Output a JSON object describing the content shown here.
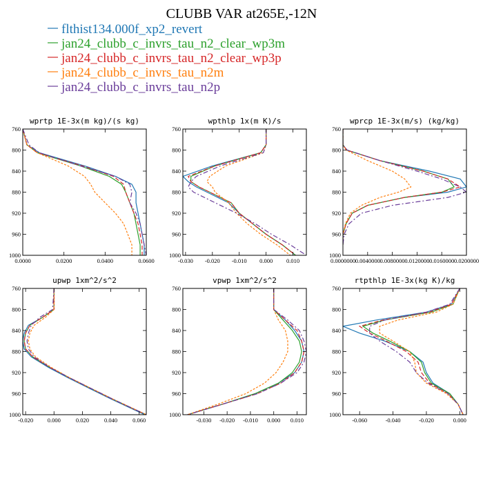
{
  "title": "CLUBB VAR at265E,-12N",
  "legend": [
    {
      "label": "flthist134.000f_xp2_revert",
      "color": "#1f77b4"
    },
    {
      "label": "jan24_clubb_c_invrs_tau_n2_clear_wp3m",
      "color": "#2ca02c"
    },
    {
      "label": "jan24_clubb_c_invrs_tau_n2_clear_wp3p",
      "color": "#d62728"
    },
    {
      "label": "jan24_clubb_c_invrs_tau_n2m",
      "color": "#ff7f0e"
    },
    {
      "label": "jan24_clubb_c_invrs_tau_n2p",
      "color": "#6a3d9a"
    }
  ],
  "chart_data": [
    {
      "type": "line",
      "title": "wprtp  1E-3x(m kg)/(s kg)",
      "xlim": [
        0.0,
        0.06
      ],
      "ylim": [
        760,
        1000
      ],
      "y_inverted": true,
      "xticks": [
        "0.0000",
        "0.0200",
        "0.0400",
        "0.0600"
      ],
      "xtick_values": [
        0.0,
        0.02,
        0.04,
        0.06
      ],
      "yticks": [
        760,
        800,
        840,
        880,
        920,
        960,
        1000
      ],
      "y": [
        760,
        790,
        805,
        830,
        850,
        865,
        880,
        900,
        920,
        940,
        960,
        980,
        1000
      ],
      "series": [
        {
          "values": [
            0.0,
            0.002,
            0.008,
            0.03,
            0.045,
            0.053,
            0.055,
            0.055,
            0.056,
            0.057,
            0.058,
            0.059,
            0.059
          ]
        },
        {
          "values": [
            0.0,
            0.002,
            0.007,
            0.028,
            0.042,
            0.048,
            0.05,
            0.052,
            0.054,
            0.055,
            0.056,
            0.057,
            0.057
          ]
        },
        {
          "values": [
            0.0,
            0.002,
            0.007,
            0.029,
            0.044,
            0.049,
            0.05,
            0.052,
            0.054,
            0.056,
            0.057,
            0.058,
            0.058
          ]
        },
        {
          "values": [
            0.0,
            0.002,
            0.007,
            0.022,
            0.03,
            0.033,
            0.035,
            0.04,
            0.045,
            0.049,
            0.051,
            0.053,
            0.053
          ]
        },
        {
          "values": [
            0.0,
            0.003,
            0.008,
            0.028,
            0.045,
            0.052,
            0.053,
            0.052,
            0.055,
            0.057,
            0.058,
            0.059,
            0.06
          ]
        }
      ]
    },
    {
      "type": "line",
      "title": "wpthlp  1x(m K)/s",
      "xlim": [
        -0.031,
        0.015
      ],
      "ylim": [
        760,
        1000
      ],
      "y_inverted": true,
      "xticks": [
        "-0.030",
        "-0.020",
        "-0.010",
        "0.000",
        "0.010"
      ],
      "xtick_values": [
        -0.03,
        -0.02,
        -0.01,
        0.0,
        0.01
      ],
      "yticks": [
        760,
        800,
        840,
        880,
        920,
        960,
        1000
      ],
      "y": [
        760,
        790,
        805,
        830,
        850,
        860,
        870,
        880,
        900,
        920,
        940,
        960,
        980,
        1000
      ],
      "series": [
        {
          "values": [
            0.0,
            0.0,
            -0.002,
            -0.02,
            -0.031,
            -0.029,
            -0.026,
            -0.022,
            -0.014,
            -0.01,
            -0.005,
            0.0,
            0.006,
            0.011
          ]
        },
        {
          "values": [
            0.0,
            0.0,
            -0.002,
            -0.019,
            -0.028,
            -0.028,
            -0.025,
            -0.021,
            -0.013,
            -0.01,
            -0.005,
            0.0,
            0.006,
            0.011
          ]
        },
        {
          "values": [
            0.0,
            0.0,
            -0.002,
            -0.019,
            -0.029,
            -0.028,
            -0.025,
            -0.021,
            -0.013,
            -0.01,
            -0.005,
            0.0,
            0.006,
            0.011
          ]
        },
        {
          "values": [
            0.0,
            0.0,
            -0.001,
            -0.015,
            -0.021,
            -0.022,
            -0.02,
            -0.019,
            -0.014,
            -0.011,
            -0.007,
            -0.002,
            0.004,
            0.009
          ]
        },
        {
          "values": [
            0.0,
            0.0,
            -0.001,
            -0.017,
            -0.026,
            -0.028,
            -0.029,
            -0.027,
            -0.019,
            -0.011,
            -0.004,
            0.002,
            0.009,
            0.015
          ]
        }
      ]
    },
    {
      "type": "line",
      "title": "wprcp  1E-3x(m/s) (kg/kg)",
      "xlim": [
        0.0,
        0.02
      ],
      "ylim": [
        760,
        1000
      ],
      "y_inverted": true,
      "xticks": [
        "0.0000000",
        "0.0040000",
        "0.0080000",
        "0.0120000",
        "0.0160000",
        "0.0200000"
      ],
      "xtick_values": [
        0.0,
        0.004,
        0.008,
        0.012,
        0.016,
        0.02
      ],
      "yticks": [
        760,
        800,
        840,
        880,
        920,
        960,
        1000
      ],
      "y": [
        760,
        790,
        800,
        820,
        840,
        855,
        870,
        880,
        890,
        905,
        920,
        940,
        960,
        980
      ],
      "series": [
        {
          "values": [
            0.0,
            0.0,
            0.0006,
            0.006,
            0.014,
            0.019,
            0.02,
            0.017,
            0.01,
            0.004,
            0.0015,
            0.0005,
            0.0,
            0.0
          ]
        },
        {
          "values": [
            0.0,
            0.0,
            0.0006,
            0.006,
            0.013,
            0.017,
            0.018,
            0.016,
            0.01,
            0.004,
            0.0015,
            0.0005,
            0.0,
            0.0
          ]
        },
        {
          "values": [
            0.0,
            0.0,
            0.0006,
            0.006,
            0.013,
            0.017,
            0.019,
            0.016,
            0.01,
            0.004,
            0.0015,
            0.0005,
            0.0,
            0.0
          ]
        },
        {
          "values": [
            0.0,
            0.0,
            0.0005,
            0.004,
            0.008,
            0.01,
            0.011,
            0.009,
            0.006,
            0.003,
            0.0012,
            0.0004,
            0.0,
            0.0
          ]
        },
        {
          "values": [
            0.0,
            0.0,
            0.0007,
            0.006,
            0.012,
            0.016,
            0.019,
            0.02,
            0.017,
            0.008,
            0.003,
            0.001,
            0.0002,
            0.0
          ]
        }
      ]
    },
    {
      "type": "line",
      "title": "upwp  1xm^2/s^2",
      "xlim": [
        -0.022,
        0.065
      ],
      "ylim": [
        760,
        1000
      ],
      "y_inverted": true,
      "xticks": [
        "-0.020",
        "0.000",
        "0.020",
        "0.040",
        "0.060"
      ],
      "xtick_values": [
        -0.02,
        0.0,
        0.02,
        0.04,
        0.06
      ],
      "yticks": [
        760,
        800,
        840,
        880,
        920,
        960,
        1000
      ],
      "y": [
        760,
        800,
        815,
        830,
        845,
        860,
        875,
        890,
        910,
        930,
        950,
        970,
        990,
        1000
      ],
      "series": [
        {
          "values": [
            0.0,
            0.0,
            -0.008,
            -0.018,
            -0.021,
            -0.022,
            -0.021,
            -0.016,
            -0.004,
            0.01,
            0.025,
            0.04,
            0.056,
            0.064
          ]
        },
        {
          "values": [
            0.0,
            0.0,
            -0.008,
            -0.017,
            -0.02,
            -0.021,
            -0.02,
            -0.015,
            -0.003,
            0.011,
            0.026,
            0.041,
            0.057,
            0.065
          ]
        },
        {
          "values": [
            0.0,
            0.0,
            -0.008,
            -0.017,
            -0.02,
            -0.021,
            -0.02,
            -0.015,
            -0.003,
            0.011,
            0.026,
            0.041,
            0.057,
            0.065
          ]
        },
        {
          "values": [
            0.0,
            0.0,
            -0.006,
            -0.014,
            -0.017,
            -0.018,
            -0.017,
            -0.013,
            -0.002,
            0.011,
            0.026,
            0.041,
            0.057,
            0.065
          ]
        },
        {
          "values": [
            0.0,
            -0.001,
            -0.01,
            -0.016,
            -0.018,
            -0.019,
            -0.018,
            -0.014,
            -0.003,
            0.011,
            0.026,
            0.041,
            0.057,
            0.065
          ]
        }
      ]
    },
    {
      "type": "line",
      "title": "vpwp  1xm^2/s^2",
      "xlim": [
        -0.039,
        0.014
      ],
      "ylim": [
        760,
        1000
      ],
      "y_inverted": true,
      "xticks": [
        "-0.030",
        "-0.020",
        "-0.010",
        "0.000",
        "0.010"
      ],
      "xtick_values": [
        -0.03,
        -0.02,
        -0.01,
        0.0,
        0.01
      ],
      "yticks": [
        760,
        800,
        840,
        880,
        920,
        960,
        1000
      ],
      "y": [
        760,
        800,
        820,
        840,
        860,
        880,
        900,
        920,
        940,
        960,
        980,
        1000
      ],
      "series": [
        {
          "values": [
            0.0,
            0.0,
            0.005,
            0.009,
            0.012,
            0.013,
            0.012,
            0.009,
            0.002,
            -0.008,
            -0.022,
            -0.037
          ]
        },
        {
          "values": [
            0.0,
            0.0,
            0.004,
            0.008,
            0.011,
            0.012,
            0.011,
            0.008,
            0.002,
            -0.008,
            -0.022,
            -0.037
          ]
        },
        {
          "values": [
            0.0,
            0.0,
            0.005,
            0.01,
            0.012,
            0.013,
            0.012,
            0.009,
            0.003,
            -0.007,
            -0.022,
            -0.037
          ]
        },
        {
          "values": [
            0.0,
            0.0,
            0.002,
            0.005,
            0.006,
            0.006,
            0.004,
            0.001,
            -0.004,
            -0.012,
            -0.024,
            -0.037
          ]
        },
        {
          "values": [
            0.0,
            0.0,
            0.006,
            0.011,
            0.013,
            0.014,
            0.013,
            0.01,
            0.003,
            -0.007,
            -0.022,
            -0.037
          ]
        }
      ]
    },
    {
      "type": "line",
      "title": "rtpthlp  1E-3x(kg K)/kg",
      "xlim": [
        -0.07,
        0.004
      ],
      "ylim": [
        760,
        1000
      ],
      "y_inverted": true,
      "xticks": [
        "-0.060",
        "-0.040",
        "-0.020",
        "0.000"
      ],
      "xtick_values": [
        -0.06,
        -0.04,
        -0.02,
        0.0
      ],
      "yticks": [
        760,
        800,
        840,
        880,
        920,
        960,
        1000
      ],
      "y": [
        760,
        790,
        805,
        820,
        832,
        845,
        860,
        880,
        900,
        920,
        940,
        960,
        980,
        1000
      ],
      "series": [
        {
          "values": [
            0.0,
            -0.005,
            -0.02,
            -0.05,
            -0.07,
            -0.06,
            -0.045,
            -0.03,
            -0.022,
            -0.02,
            -0.016,
            -0.006,
            -0.001,
            0.002
          ]
        },
        {
          "values": [
            0.0,
            -0.004,
            -0.017,
            -0.045,
            -0.058,
            -0.052,
            -0.042,
            -0.03,
            -0.023,
            -0.021,
            -0.017,
            -0.006,
            -0.001,
            0.002
          ]
        },
        {
          "values": [
            0.0,
            -0.005,
            -0.018,
            -0.046,
            -0.06,
            -0.054,
            -0.044,
            -0.032,
            -0.025,
            -0.023,
            -0.018,
            -0.007,
            -0.001,
            0.002
          ]
        },
        {
          "values": [
            0.0,
            -0.004,
            -0.014,
            -0.037,
            -0.048,
            -0.048,
            -0.04,
            -0.03,
            -0.027,
            -0.026,
            -0.02,
            -0.008,
            -0.001,
            0.002
          ]
        },
        {
          "values": [
            0.0,
            -0.006,
            -0.02,
            -0.045,
            -0.054,
            -0.054,
            -0.048,
            -0.038,
            -0.03,
            -0.026,
            -0.019,
            -0.007,
            -0.001,
            0.002
          ]
        }
      ]
    }
  ]
}
